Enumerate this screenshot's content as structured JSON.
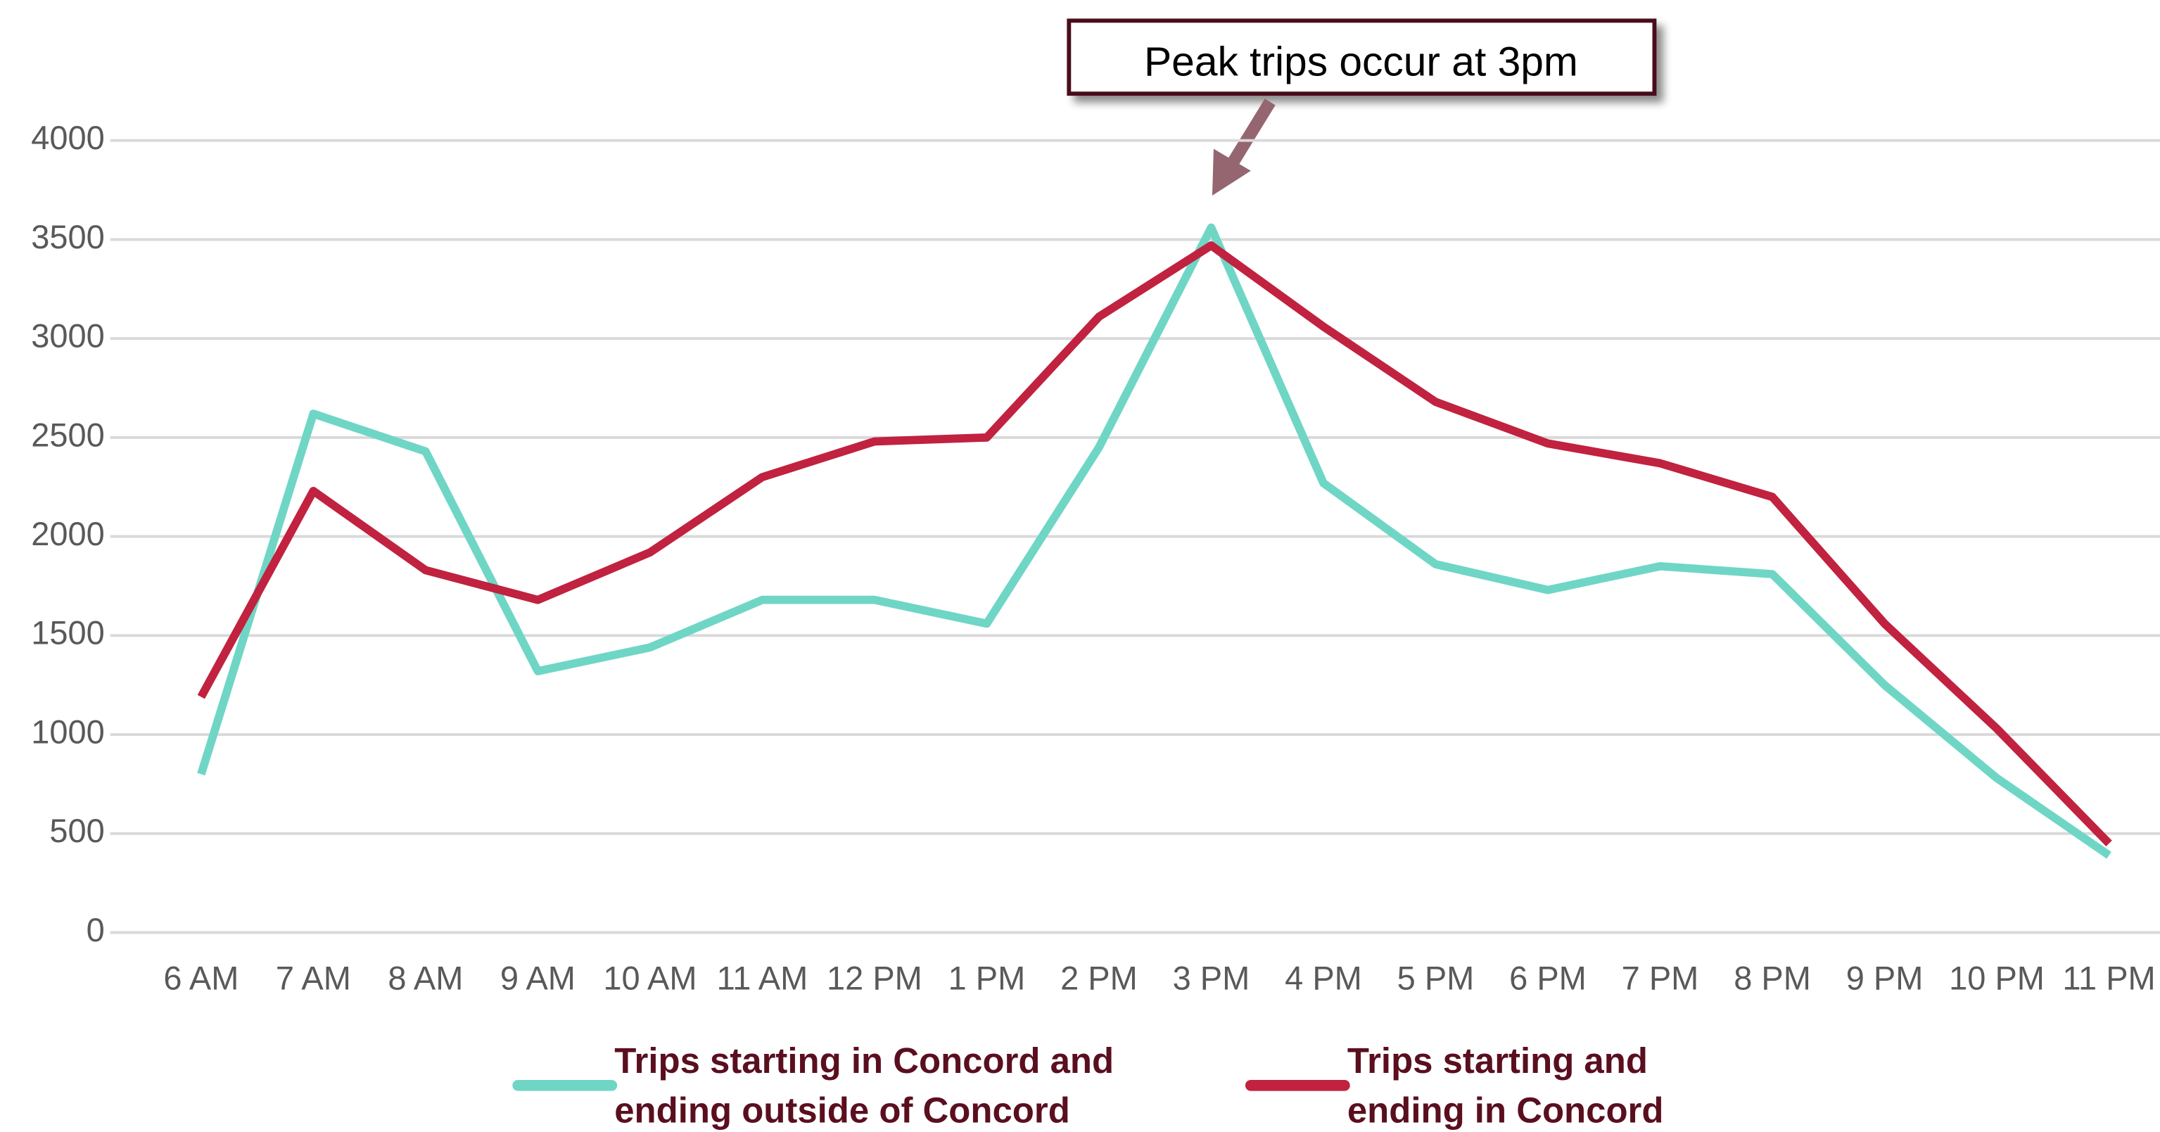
{
  "chart_data": {
    "type": "line",
    "annotation": "Peak trips occur at 3pm",
    "categories": [
      "6 AM",
      "7 AM",
      "8 AM",
      "9 AM",
      "10 AM",
      "11 AM",
      "12 PM",
      "1 PM",
      "2 PM",
      "3 PM",
      "4 PM",
      "5 PM",
      "6 PM",
      "7 PM",
      "8 PM",
      "9 PM",
      "10 PM",
      "11 PM"
    ],
    "series": [
      {
        "name": "Trips starting in Concord and ending outside of Concord",
        "color": "#6fd6c6",
        "values": [
          800,
          2620,
          2430,
          1320,
          1440,
          1680,
          1680,
          1560,
          2450,
          3560,
          2270,
          1860,
          1730,
          1850,
          1810,
          1250,
          780,
          390
        ]
      },
      {
        "name": "Trips starting and ending in Concord",
        "color": "#c0223f",
        "values": [
          1190,
          2230,
          1830,
          1680,
          1920,
          2300,
          2480,
          2500,
          3110,
          3470,
          3060,
          2680,
          2470,
          2370,
          2200,
          1560,
          1030,
          450
        ]
      }
    ],
    "ylim": [
      0,
      4000
    ],
    "yticks": [
      0,
      500,
      1000,
      1500,
      2000,
      2500,
      3000,
      3500,
      4000
    ],
    "grid": true,
    "legend": "bottom"
  }
}
